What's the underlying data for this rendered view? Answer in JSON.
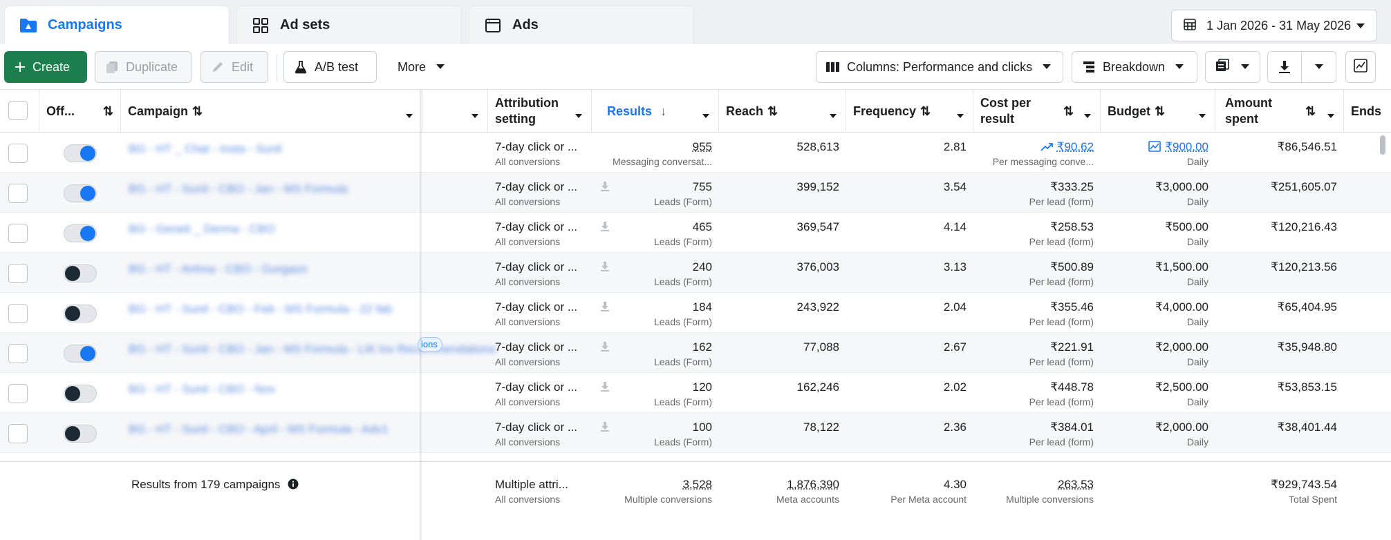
{
  "tabs": [
    {
      "label": "Campaigns",
      "icon": "folder-icon",
      "active": true
    },
    {
      "label": "Ad sets",
      "icon": "grid-icon",
      "active": false
    },
    {
      "label": "Ads",
      "icon": "ad-window-icon",
      "active": false
    }
  ],
  "date_range": {
    "label": "1 Jan 2026 - 31 May 2026"
  },
  "toolbar": {
    "create": "Create",
    "duplicate": "Duplicate",
    "edit": "Edit",
    "ab_test": "A/B test",
    "more": "More",
    "columns": "Columns: Performance and clicks",
    "breakdown": "Breakdown"
  },
  "columns": {
    "off": "Off...",
    "campaign": "Campaign",
    "attribution": "Attribution setting",
    "results": "Results",
    "reach": "Reach",
    "frequency": "Frequency",
    "cost_per_result": "Cost per result",
    "budget": "Budget",
    "amount_spent": "Amount spent",
    "ends": "Ends"
  },
  "rows": [
    {
      "on": true,
      "campaign": "BG - HT _ Chat - Insta - Sunil",
      "attr": "7-day click or ...",
      "attr_sub": "All conversions",
      "results": "955",
      "results_sub": "Messaging conversat...",
      "reach": "528,613",
      "frequency": "2.81",
      "cpr": "₹90.62",
      "cpr_sub": "Per messaging conve...",
      "budget": "₹900.00",
      "budget_sub": "Daily",
      "spent": "₹86,546.51"
    },
    {
      "on": true,
      "campaign": "BG - HT - Sunil - CBO - Jan - MS Formula",
      "attr": "7-day click or ...",
      "attr_sub": "All conversions",
      "results": "755",
      "results_sub": "Leads (Form)",
      "reach": "399,152",
      "frequency": "3.54",
      "cpr": "₹333.25",
      "cpr_sub": "Per lead (form)",
      "budget": "₹3,000.00",
      "budget_sub": "Daily",
      "spent": "₹251,605.07"
    },
    {
      "on": true,
      "campaign": "BG - Geneti _ Derma - CBO",
      "attr": "7-day click or ...",
      "attr_sub": "All conversions",
      "results": "465",
      "results_sub": "Leads (Form)",
      "reach": "369,547",
      "frequency": "4.14",
      "cpr": "₹258.53",
      "cpr_sub": "Per lead (form)",
      "budget": "₹500.00",
      "budget_sub": "Daily",
      "spent": "₹120,216.43"
    },
    {
      "on": false,
      "campaign": "BG - HT - Anhna - CBO - Gurgaon",
      "attr": "7-day click or ...",
      "attr_sub": "All conversions",
      "results": "240",
      "results_sub": "Leads (Form)",
      "reach": "376,003",
      "frequency": "3.13",
      "cpr": "₹500.89",
      "cpr_sub": "Per lead (form)",
      "budget": "₹1,500.00",
      "budget_sub": "Daily",
      "spent": "₹120,213.56"
    },
    {
      "on": false,
      "campaign": "BG - HT - Sunil - CBO - Feb - MS Formula - 22 fab",
      "attr": "7-day click or ...",
      "attr_sub": "All conversions",
      "results": "184",
      "results_sub": "Leads (Form)",
      "reach": "243,922",
      "frequency": "2.04",
      "cpr": "₹355.46",
      "cpr_sub": "Per lead (form)",
      "budget": "₹4,000.00",
      "budget_sub": "Daily",
      "spent": "₹65,404.95"
    },
    {
      "on": true,
      "campaign": "BG - HT - Sunil - CBO - Jan - MS Formula - LIK lnv Recommendations",
      "attr": "7-day click or ...",
      "attr_sub": "All conversions",
      "results": "162",
      "results_sub": "Leads (Form)",
      "reach": "77,088",
      "frequency": "2.67",
      "cpr": "₹221.91",
      "cpr_sub": "Per lead (form)",
      "budget": "₹2,000.00",
      "budget_sub": "Daily",
      "spent": "₹35,948.80"
    },
    {
      "on": false,
      "campaign": "BG - HT - Sunil - CBO - Nov",
      "attr": "7-day click or ...",
      "attr_sub": "All conversions",
      "results": "120",
      "results_sub": "Leads (Form)",
      "reach": "162,246",
      "frequency": "2.02",
      "cpr": "₹448.78",
      "cpr_sub": "Per lead (form)",
      "budget": "₹2,500.00",
      "budget_sub": "Daily",
      "spent": "₹53,853.15"
    },
    {
      "on": false,
      "campaign": "BG - HT - Sunil - CBO - April - MS Formula - Adv1",
      "attr": "7-day click or ...",
      "attr_sub": "All conversions",
      "results": "100",
      "results_sub": "Leads (Form)",
      "reach": "78,122",
      "frequency": "2.36",
      "cpr": "₹384.01",
      "cpr_sub": "Per lead (form)",
      "budget": "₹2,000.00",
      "budget_sub": "Daily",
      "spent": "₹38,401.44"
    }
  ],
  "pill": {
    "label": "ions"
  },
  "footer": {
    "label": "Results from 179 campaigns",
    "attr": "Multiple attri...",
    "attr_sub": "All conversions",
    "results": "3,528",
    "results_sub": "Multiple conversions",
    "reach": "1,876,390",
    "reach_sub": "Meta accounts",
    "frequency": "4.30",
    "frequency_sub": "Per Meta account",
    "cpr": "263.53",
    "cpr_sub": "Multiple conversions",
    "spent": "₹929,743.54",
    "spent_sub": "Total Spent"
  },
  "colors": {
    "accent": "#1877f2",
    "create_green": "#1e7f4e",
    "toggle_on": "#1877f2",
    "toggle_off_knob": "#1c2b33"
  }
}
